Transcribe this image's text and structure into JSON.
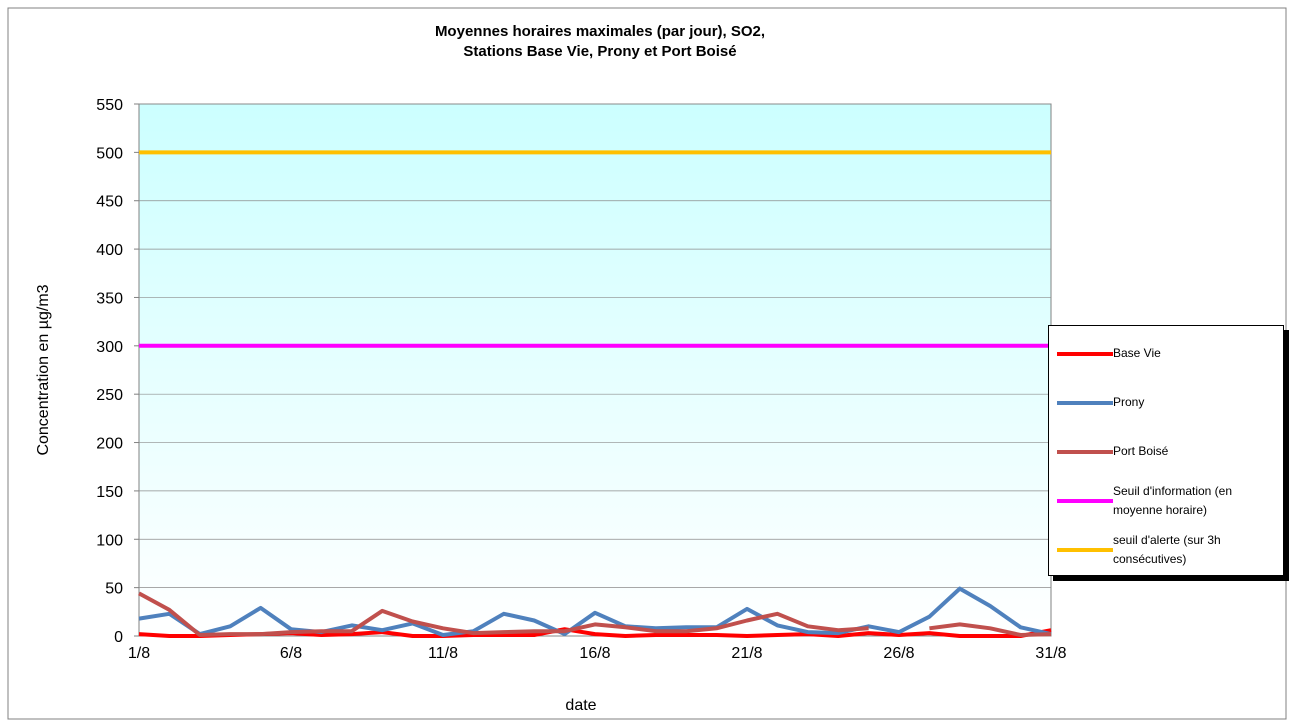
{
  "chart_data": {
    "type": "line",
    "title": [
      "Moyennes horaires maximales (par jour), SO2,",
      "Stations Base Vie, Prony et Port Boisé"
    ],
    "x_label": "date",
    "y_label": "Concentration en µg/m3",
    "categories": [
      "1/8",
      null,
      null,
      null,
      null,
      "6/8",
      null,
      null,
      null,
      null,
      "11/8",
      null,
      null,
      null,
      null,
      "16/8",
      null,
      null,
      null,
      null,
      "21/8",
      null,
      null,
      null,
      null,
      "26/8",
      null,
      null,
      null,
      null,
      "31/8"
    ],
    "ylim": [
      0,
      550
    ],
    "yticks": [
      0,
      50,
      100,
      150,
      200,
      250,
      300,
      350,
      400,
      450,
      500,
      550
    ],
    "grid": true,
    "legend": "right",
    "series": [
      {
        "name": "Base Vie",
        "color": "#ff0000",
        "values": [
          2,
          0,
          0,
          1,
          2,
          3,
          1,
          2,
          4,
          0,
          0,
          1,
          1,
          1,
          7,
          2,
          0,
          1,
          1,
          1,
          0,
          1,
          2,
          0,
          3,
          1,
          3,
          0,
          0,
          0,
          6
        ]
      },
      {
        "name": "Prony",
        "color": "#4f81bd",
        "values": [
          18,
          23,
          2,
          10,
          29,
          7,
          4,
          11,
          6,
          13,
          1,
          5,
          23,
          16,
          2,
          24,
          10,
          8,
          9,
          9,
          28,
          11,
          4,
          3,
          10,
          4,
          20,
          49,
          31,
          9,
          2
        ]
      },
      {
        "name": "Port Boisé",
        "color": "#c0504d",
        "values": [
          44,
          27,
          1,
          2,
          2,
          4,
          5,
          5,
          26,
          15,
          8,
          3,
          4,
          5,
          5,
          12,
          9,
          5,
          5,
          8,
          16,
          23,
          10,
          6,
          8,
          null,
          8,
          12,
          8,
          1,
          2
        ]
      },
      {
        "name": "Seuil d'information (en moyenne horaire)",
        "color": "#ff00ff",
        "values": [
          300,
          300,
          300,
          300,
          300,
          300,
          300,
          300,
          300,
          300,
          300,
          300,
          300,
          300,
          300,
          300,
          300,
          300,
          300,
          300,
          300,
          300,
          300,
          300,
          300,
          300,
          300,
          300,
          300,
          300,
          300
        ]
      },
      {
        "name": "seuil d'alerte (sur 3h consécutives)",
        "color": "#ffc000",
        "values": [
          500,
          500,
          500,
          500,
          500,
          500,
          500,
          500,
          500,
          500,
          500,
          500,
          500,
          500,
          500,
          500,
          500,
          500,
          500,
          500,
          500,
          500,
          500,
          500,
          500,
          500,
          500,
          500,
          500,
          500,
          500
        ]
      }
    ]
  }
}
